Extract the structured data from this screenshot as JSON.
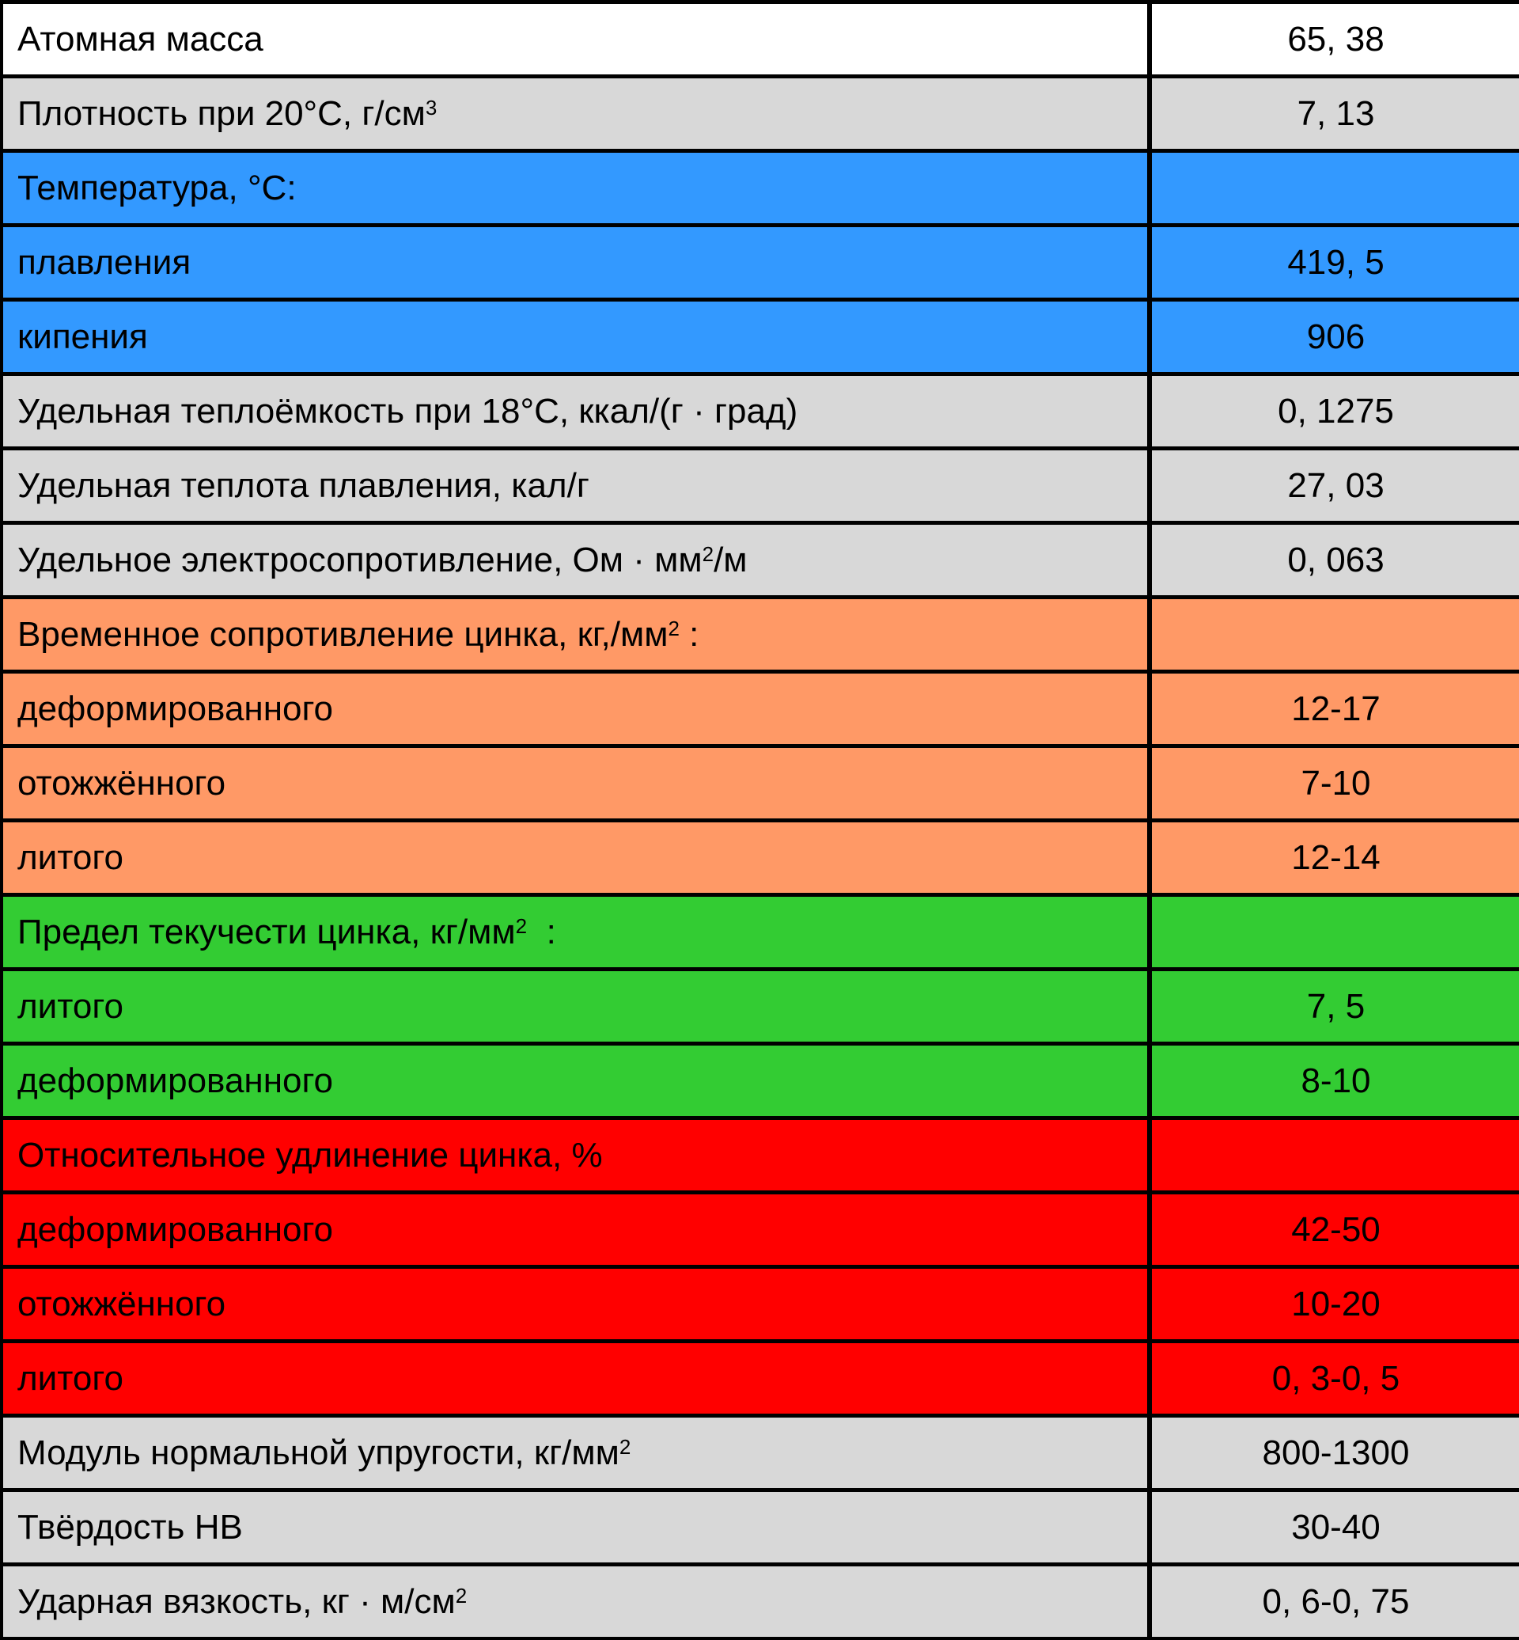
{
  "colors": {
    "white": "#ffffff",
    "gray": "#d8d8d8",
    "blue": "#3399ff",
    "orange": "#ff9966",
    "green": "#33cc33",
    "red": "#ff0000",
    "border": "#000000"
  },
  "rows": [
    {
      "label": "Атомная масса",
      "value": "65, 38"
    },
    {
      "label": "Плотность при 20°С, г/см",
      "label_sup": "3",
      "value": "7, 13"
    },
    {
      "label": "Температура, °С:",
      "value": ""
    },
    {
      "label": "плавления",
      "value": "419, 5"
    },
    {
      "label": "кипения",
      "value": "906"
    },
    {
      "label": "Удельная теплоёмкость при 18°С, ккал/(г · град)",
      "value": "0, 1275"
    },
    {
      "label": "Удельная теплота плавления, кал/г",
      "value": "27, 03"
    },
    {
      "label": "Удельное электросопротивление, Ом · мм",
      "label_sup": "2",
      "label_after": "/м",
      "value": "0, 063"
    },
    {
      "label": "Временное сопротивление цинка, кг,/мм",
      "label_sup": "2",
      "label_after": " :",
      "value": ""
    },
    {
      "label": "деформированного",
      "value": "12-17"
    },
    {
      "label": "отожжённого",
      "value": "7-10"
    },
    {
      "label": "литого",
      "value": "12-14"
    },
    {
      "label": "Предел текучести цинка, кг/мм",
      "label_sup": "2",
      "label_after": "  :",
      "value": ""
    },
    {
      "label": "литого",
      "value": "7, 5"
    },
    {
      "label": "деформированного",
      "value": "8-10"
    },
    {
      "label": "Относительное удлинение цинка, %",
      "value": ""
    },
    {
      "label": "деформированного",
      "value": "42-50"
    },
    {
      "label": "отожжённого",
      "value": "10-20"
    },
    {
      "label": "литого",
      "value": "0, 3-0, 5"
    },
    {
      "label": "Модуль нормальной упругости, кг/мм",
      "label_sup": "2",
      "value": "800-1300"
    },
    {
      "label": "Твёрдость НВ",
      "value": "30-40"
    },
    {
      "label": "Ударная вязкость, кг · м/см",
      "label_sup": "2",
      "value": "0, 6-0, 75"
    }
  ]
}
